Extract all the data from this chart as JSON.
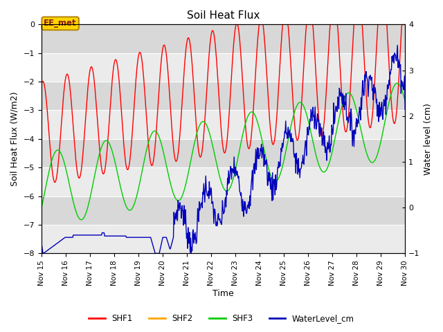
{
  "title": "Soil Heat Flux",
  "xlabel": "Time",
  "ylabel_left": "Soil Heat Flux (W/m2)",
  "ylabel_right": "Water level (cm)",
  "ylim_left": [
    -8.0,
    0.0
  ],
  "ylim_right": [
    -1.0,
    4.0
  ],
  "annotation_text": "EE_met",
  "annotation_color": "#8B1A1A",
  "annotation_bg": "#FFD700",
  "annotation_edge": "#B8860B",
  "shf2_color": "#FFA500",
  "shf1_color": "#FF0000",
  "shf3_color": "#00CC00",
  "water_color": "#0000BB",
  "bg_color_light": "#F0F0F0",
  "bg_color_dark": "#DCDCDC",
  "grid_color": "#FFFFFF",
  "x_start": 15,
  "x_end": 30,
  "x_ticks": [
    15,
    16,
    17,
    18,
    19,
    20,
    21,
    22,
    23,
    24,
    25,
    26,
    27,
    28,
    29,
    30
  ],
  "x_tick_labels": [
    "Nov 15",
    "Nov 16",
    "Nov 17",
    "Nov 18",
    "Nov 19",
    "Nov 20",
    "Nov 21",
    "Nov 22",
    "Nov 23",
    "Nov 24",
    "Nov 25",
    "Nov 26",
    "Nov 27",
    "Nov 28",
    "Nov 29",
    "Nov 30"
  ]
}
